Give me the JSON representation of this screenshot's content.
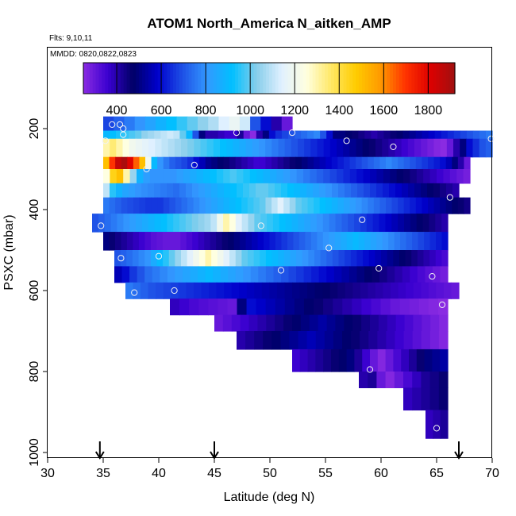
{
  "chart_data": {
    "type": "heatmap",
    "title": "ATOM1 North_America N_aitken_AMP",
    "flights_note": "Flts: 9,10,11",
    "dates_note": "MMDD: 0820,0822,0823",
    "xlabel": "Latitude (deg N)",
    "ylabel": "PSXC (mbar)",
    "xlim": [
      30,
      70
    ],
    "ylim": [
      1000,
      0
    ],
    "y_reversed": true,
    "x_ticks": [
      30,
      35,
      40,
      45,
      50,
      55,
      60,
      65,
      70
    ],
    "y_ticks": [
      200,
      400,
      600,
      800,
      1000
    ],
    "colorbar": {
      "min": 250,
      "max": 1920,
      "ticks": [
        400,
        600,
        800,
        1000,
        1200,
        1400,
        1600,
        1800
      ],
      "colors": [
        "#8a2be2",
        "#3a00d0",
        "#000066",
        "#0000cc",
        "#1e50e6",
        "#3399ff",
        "#00bfff",
        "#87ceeb",
        "#e0f0ff",
        "#ffffe0",
        "#ffe866",
        "#ffcc00",
        "#ff9900",
        "#ff3300",
        "#dd0000",
        "#a01010"
      ]
    },
    "marker_latitudes": [
      34.7,
      45,
      67
    ],
    "rows": [
      {
        "y0": 170,
        "y1": 205,
        "x0": 35,
        "x1": 52.0,
        "values": [
          680,
          720,
          760,
          800,
          840,
          880,
          920,
          960,
          1000,
          1040,
          1080,
          1140,
          1180,
          1120,
          700,
          600,
          400,
          300
        ]
      },
      {
        "y0": 205,
        "y1": 225,
        "x0": 35,
        "x1": 70.0,
        "values": [
          900,
          920,
          940,
          960,
          980,
          1000,
          1040,
          1060,
          1080,
          1100,
          1120,
          1100,
          1000,
          900,
          700,
          500,
          400,
          400,
          380,
          360,
          360,
          420,
          300,
          250,
          400,
          500,
          600,
          650,
          680,
          700,
          720,
          740,
          760,
          780,
          700,
          600,
          500,
          500,
          480,
          460,
          440,
          420,
          400,
          420,
          440,
          460,
          480,
          500,
          520,
          540,
          560,
          580,
          600,
          620,
          640,
          660,
          680,
          700,
          720,
          740,
          760
        ]
      },
      {
        "y0": 225,
        "y1": 270,
        "x0": 35,
        "x1": 70.0,
        "values": [
          1300,
          1350,
          1300,
          1250,
          1200,
          1180,
          1160,
          1140,
          1120,
          1100,
          1080,
          1060,
          1040,
          1020,
          1000,
          980,
          960,
          940,
          920,
          900,
          880,
          860,
          840,
          820,
          800,
          780,
          760,
          740,
          720,
          700,
          680,
          660,
          640,
          620,
          600,
          580,
          560,
          540,
          520,
          500,
          480,
          460,
          440,
          420,
          400,
          380,
          360,
          340,
          320,
          300,
          280,
          260,
          250,
          300,
          400,
          500,
          600,
          650,
          700,
          720
        ]
      },
      {
        "y0": 270,
        "y1": 300,
        "x0": 35,
        "x1": 68.0,
        "values": [
          1500,
          1700,
          1850,
          1900,
          1800,
          1650,
          1500,
          1200,
          900,
          800,
          760,
          720,
          700,
          680,
          650,
          600,
          560,
          520,
          500,
          480,
          460,
          440,
          420,
          400,
          380,
          360,
          360,
          380,
          400,
          420,
          440,
          460,
          480,
          500,
          520,
          540,
          560,
          580,
          600,
          620,
          640,
          660,
          680,
          700,
          720,
          740,
          760,
          780,
          760,
          740,
          720,
          700,
          680,
          660,
          640,
          620,
          600,
          560,
          500,
          400,
          300
        ]
      },
      {
        "y0": 300,
        "y1": 335,
        "x0": 35,
        "x1": 68.0,
        "values": [
          1250,
          1450,
          1500,
          1300,
          1050,
          880,
          820,
          800,
          800,
          800,
          800,
          820,
          840,
          860,
          880,
          900,
          920,
          940,
          960,
          980,
          960,
          940,
          920,
          900,
          880,
          860,
          840,
          820,
          800,
          780,
          760,
          740,
          720,
          700,
          680,
          660,
          640,
          620,
          600,
          580,
          560,
          540,
          520,
          500,
          480,
          460,
          440,
          420,
          400,
          380,
          360,
          340,
          320,
          300,
          280
        ]
      },
      {
        "y0": 335,
        "y1": 370,
        "x0": 35,
        "x1": 67.0,
        "values": [
          1100,
          950,
          880,
          840,
          820,
          800,
          790,
          780,
          770,
          760,
          750,
          740,
          760,
          780,
          800,
          820,
          840,
          860,
          880,
          900,
          920,
          940,
          960,
          980,
          1000,
          1000,
          980,
          960,
          940,
          920,
          900,
          880,
          860,
          840,
          820,
          800,
          780,
          760,
          740,
          720,
          700,
          680,
          660,
          640,
          620,
          600,
          580,
          560,
          540,
          520,
          500,
          480,
          460,
          440,
          420,
          400
        ]
      },
      {
        "y0": 370,
        "y1": 410,
        "x0": 35,
        "x1": 68.0,
        "values": [
          760,
          740,
          720,
          700,
          690,
          680,
          670,
          660,
          660,
          660,
          680,
          700,
          720,
          740,
          760,
          780,
          800,
          820,
          840,
          860,
          880,
          900,
          920,
          940,
          960,
          980,
          1000,
          1050,
          1100,
          1150,
          1100,
          1050,
          1000,
          980,
          960,
          940,
          920,
          900,
          880,
          860,
          840,
          820,
          800,
          780,
          760,
          740,
          720,
          700,
          680,
          660,
          640,
          620,
          600,
          580,
          560,
          540,
          520,
          500,
          480,
          460,
          440
        ]
      },
      {
        "y0": 410,
        "y1": 455,
        "x0": 34,
        "x1": 66.0,
        "values": [
          700,
          720,
          740,
          760,
          780,
          800,
          820,
          840,
          860,
          880,
          900,
          920,
          940,
          960,
          980,
          1000,
          1020,
          1040,
          1060,
          1100,
          1200,
          1300,
          1250,
          1150,
          1100,
          1050,
          1000,
          980,
          960,
          940,
          920,
          900,
          880,
          860,
          840,
          820,
          800,
          780,
          760,
          740,
          720,
          700,
          680,
          660,
          640,
          620,
          600,
          580,
          560,
          540,
          520,
          500,
          480,
          460,
          440,
          420,
          400
        ]
      },
      {
        "y0": 455,
        "y1": 500,
        "x0": 35,
        "x1": 66.0,
        "values": [
          500,
          460,
          440,
          420,
          400,
          380,
          360,
          340,
          320,
          310,
          300,
          300,
          300,
          320,
          340,
          360,
          380,
          400,
          420,
          440,
          460,
          480,
          500,
          520,
          540,
          560,
          580,
          600,
          620,
          640,
          660,
          680,
          700,
          720,
          740,
          760,
          780,
          800,
          820,
          840,
          860,
          880,
          900,
          880,
          860,
          840,
          820,
          800,
          780,
          760,
          740,
          720,
          700,
          680,
          660,
          640,
          620,
          600
        ]
      },
      {
        "y0": 500,
        "y1": 540,
        "x0": 36,
        "x1": 66.0,
        "values": [
          700,
          720,
          740,
          760,
          780,
          800,
          860,
          900,
          950,
          1000,
          1050,
          1100,
          1150,
          1200,
          1250,
          1300,
          1250,
          1200,
          1150,
          1100,
          1050,
          1000,
          980,
          960,
          940,
          920,
          900,
          880,
          860,
          840,
          820,
          800,
          780,
          760,
          740,
          720,
          700,
          680,
          660,
          640,
          620,
          600,
          580,
          560,
          540,
          520,
          500,
          480,
          460,
          440,
          420,
          400,
          380,
          360,
          340
        ]
      },
      {
        "y0": 540,
        "y1": 580,
        "x0": 36,
        "x1": 66.0,
        "values": [
          560,
          600,
          660,
          700,
          740,
          760,
          780,
          800,
          820,
          840,
          860,
          880,
          900,
          880,
          860,
          840,
          820,
          800,
          780,
          760,
          740,
          720,
          700,
          680,
          660,
          640,
          620,
          600,
          580,
          560,
          540,
          520,
          500,
          480,
          460,
          440,
          420,
          400,
          380,
          360,
          340,
          320,
          300,
          280
        ]
      },
      {
        "y0": 580,
        "y1": 620,
        "x0": 37,
        "x1": 67.0,
        "values": [
          760,
          740,
          720,
          700,
          690,
          680,
          670,
          660,
          650,
          640,
          630,
          620,
          610,
          600,
          590,
          580,
          570,
          560,
          550,
          540,
          530,
          520,
          510,
          500,
          490,
          480,
          470,
          460,
          450,
          440,
          430,
          420,
          410,
          400,
          390,
          380,
          370,
          360,
          350,
          340,
          330,
          320,
          310,
          300
        ]
      },
      {
        "y0": 620,
        "y1": 660,
        "x0": 41,
        "x1": 66.0,
        "values": [
          380,
          360,
          340,
          330,
          320,
          310,
          300,
          500,
          600,
          580,
          560,
          540,
          520,
          500,
          480,
          460,
          440,
          420,
          400,
          380,
          360,
          340,
          320,
          300,
          290,
          280,
          270,
          260,
          250
        ]
      },
      {
        "y0": 660,
        "y1": 700,
        "x0": 45,
        "x1": 66.0,
        "values": [
          300,
          320,
          340,
          360,
          380,
          400,
          420,
          440,
          460,
          480,
          500,
          520,
          540,
          520,
          500,
          480,
          460,
          440,
          420,
          400,
          380,
          360,
          340,
          320,
          300,
          280,
          260
        ]
      },
      {
        "y0": 700,
        "y1": 745,
        "x0": 47,
        "x1": 66.0,
        "values": [
          400,
          420,
          440,
          460,
          480,
          500,
          520,
          540,
          560,
          540,
          520,
          500,
          480,
          460,
          440,
          420,
          400,
          380,
          360,
          340,
          320,
          300,
          280,
          260
        ]
      },
      {
        "y0": 745,
        "y1": 800,
        "x0": 52,
        "x1": 66.0,
        "values": [
          360,
          380,
          400,
          420,
          440,
          460,
          480,
          500,
          420,
          360,
          300,
          260,
          300,
          340,
          380,
          420,
          460,
          500,
          520,
          540
        ]
      },
      {
        "y0": 800,
        "y1": 840,
        "x0": 58,
        "x1": 66.0,
        "values": [
          400,
          420,
          300,
          260,
          300,
          340,
          380,
          420,
          440,
          460
        ]
      },
      {
        "y0": 840,
        "y1": 895,
        "x0": 62,
        "x1": 66.0,
        "values": [
          380,
          400,
          420,
          440,
          460
        ]
      },
      {
        "y0": 895,
        "y1": 965,
        "x0": 64,
        "x1": 66.0,
        "values": [
          380,
          400,
          420
        ]
      }
    ],
    "observations": [
      {
        "lat": 35.8,
        "p": 190
      },
      {
        "lat": 36.5,
        "p": 190
      },
      {
        "lat": 36.8,
        "p": 200
      },
      {
        "lat": 36.8,
        "p": 215
      },
      {
        "lat": 35.2,
        "p": 230
      },
      {
        "lat": 38.9,
        "p": 300
      },
      {
        "lat": 43.2,
        "p": 290
      },
      {
        "lat": 47.0,
        "p": 210
      },
      {
        "lat": 52.0,
        "p": 210
      },
      {
        "lat": 56.9,
        "p": 230
      },
      {
        "lat": 61.1,
        "p": 245
      },
      {
        "lat": 69.9,
        "p": 225
      },
      {
        "lat": 66.2,
        "p": 370
      },
      {
        "lat": 34.8,
        "p": 440
      },
      {
        "lat": 49.2,
        "p": 440
      },
      {
        "lat": 58.3,
        "p": 425
      },
      {
        "lat": 55.3,
        "p": 495
      },
      {
        "lat": 36.6,
        "p": 520
      },
      {
        "lat": 40.0,
        "p": 515
      },
      {
        "lat": 51.0,
        "p": 550
      },
      {
        "lat": 59.8,
        "p": 545
      },
      {
        "lat": 64.6,
        "p": 565
      },
      {
        "lat": 37.8,
        "p": 605
      },
      {
        "lat": 41.4,
        "p": 600
      },
      {
        "lat": 65.5,
        "p": 635
      },
      {
        "lat": 59.0,
        "p": 795
      },
      {
        "lat": 65.0,
        "p": 940
      }
    ]
  }
}
